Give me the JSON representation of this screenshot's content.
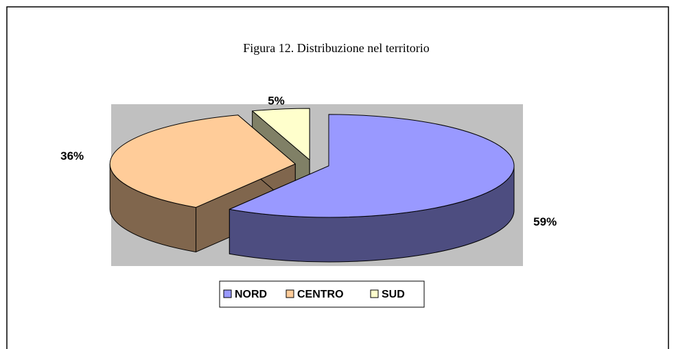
{
  "chart_data": {
    "type": "pie",
    "title": "Figura 12.  Distribuzione nel territorio",
    "categories": [
      "NORD",
      "CENTRO",
      "SUD"
    ],
    "values": [
      59,
      36,
      5
    ],
    "value_labels": [
      "59%",
      "36%",
      "5%"
    ],
    "colors": [
      "#9999ff",
      "#ffcc99",
      "#ffffcc"
    ],
    "legend": "bottom"
  }
}
